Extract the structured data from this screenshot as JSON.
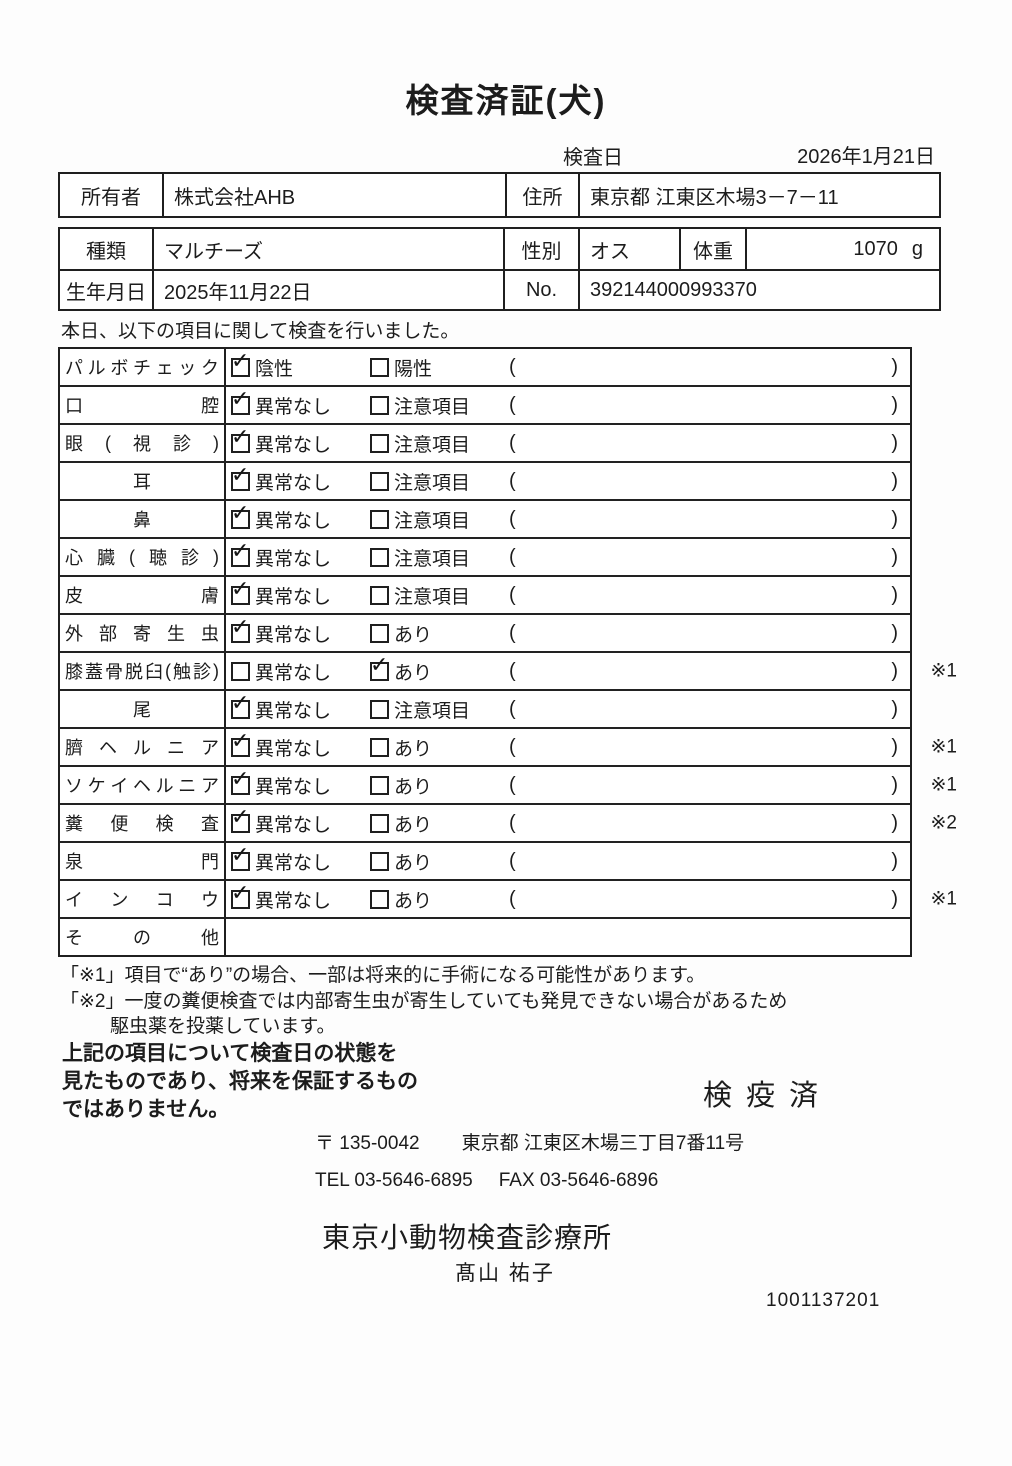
{
  "document": {
    "title": "検査済証(犬)",
    "inspection_date_label": "検査日",
    "inspection_date_value": "2026年1月21日"
  },
  "owner_row": {
    "owner_label": "所有者",
    "owner_value": "株式会社AHB",
    "address_label": "住所",
    "address_value": "東京都 江東区木場3－7－11"
  },
  "pet_info": {
    "breed_label": "種類",
    "breed_value": "マルチーズ",
    "sex_label": "性別",
    "sex_value": "オス",
    "weight_label": "体重",
    "weight_value": "1070",
    "weight_unit": "g",
    "birthdate_label": "生年月日",
    "birthdate_value": "2025年11月22日",
    "no_label": "No.",
    "no_value": "392144000993370"
  },
  "intro_text": "本日、以下の項目に関して検査を行いました。",
  "checklist": {
    "paren_open": "(",
    "paren_close": ")",
    "rows": [
      {
        "label": "パルボチェック",
        "opt1": "陰性",
        "check1": "✓",
        "opt2": "陽性",
        "check2": "",
        "mark": ""
      },
      {
        "label": "口腔",
        "opt1": "異常なし",
        "check1": "✓",
        "opt2": "注意項目",
        "check2": "",
        "mark": ""
      },
      {
        "label": "眼(視診)",
        "opt1": "異常なし",
        "check1": "✓",
        "opt2": "注意項目",
        "check2": "",
        "mark": ""
      },
      {
        "label": "耳",
        "opt1": "異常なし",
        "check1": "✓",
        "opt2": "注意項目",
        "check2": "",
        "mark": ""
      },
      {
        "label": "鼻",
        "opt1": "異常なし",
        "check1": "✓",
        "opt2": "注意項目",
        "check2": "",
        "mark": ""
      },
      {
        "label": "心臓(聴診)",
        "opt1": "異常なし",
        "check1": "✓",
        "opt2": "注意項目",
        "check2": "",
        "mark": ""
      },
      {
        "label": "皮膚",
        "opt1": "異常なし",
        "check1": "✓",
        "opt2": "注意項目",
        "check2": "",
        "mark": ""
      },
      {
        "label": "外部寄生虫",
        "opt1": "異常なし",
        "check1": "✓",
        "opt2": "あり",
        "check2": "",
        "mark": ""
      },
      {
        "label": "膝蓋骨脱臼(触診)",
        "opt1": "異常なし",
        "check1": "",
        "opt2": "あり",
        "check2": "✓",
        "mark": "※1"
      },
      {
        "label": "尾",
        "opt1": "異常なし",
        "check1": "✓",
        "opt2": "注意項目",
        "check2": "",
        "mark": ""
      },
      {
        "label": "臍ヘルニア",
        "opt1": "異常なし",
        "check1": "✓",
        "opt2": "あり",
        "check2": "",
        "mark": "※1"
      },
      {
        "label": "ソケイヘルニア",
        "opt1": "異常なし",
        "check1": "✓",
        "opt2": "あり",
        "check2": "",
        "mark": "※1"
      },
      {
        "label": "糞便検査",
        "opt1": "異常なし",
        "check1": "✓",
        "opt2": "あり",
        "check2": "",
        "mark": "※2"
      },
      {
        "label": "泉門",
        "opt1": "異常なし",
        "check1": "✓",
        "opt2": "あり",
        "check2": "",
        "mark": ""
      },
      {
        "label": "インコウ",
        "opt1": "異常なし",
        "check1": "✓",
        "opt2": "あり",
        "check2": "",
        "mark": "※1"
      },
      {
        "label": "その他"
      }
    ]
  },
  "footnotes": {
    "note1": "「※1」項目で“あり”の場合、一部は将来的に手術になる可能性があります。",
    "note2_line1": "「※2」一度の糞便検査では内部寄生虫が寄生していても発見できない場合があるため",
    "note2_line2": "駆虫薬を投薬しています。"
  },
  "disclaimer": {
    "line1": "上記の項目について検査日の状態を",
    "line2": "見たものであり、将来を保証するもの",
    "line3": "ではありません。"
  },
  "stamp_text": "検疫済",
  "clinic": {
    "postal": "〒 135-0042",
    "address": "東京都 江東区木場三丁目7番11号",
    "tel": "TEL 03-5646-6895",
    "fax": "FAX 03-5646-6896",
    "name": "東京小動物検査診療所",
    "vet_name": "髙山 祐子",
    "code": "1001137201"
  }
}
